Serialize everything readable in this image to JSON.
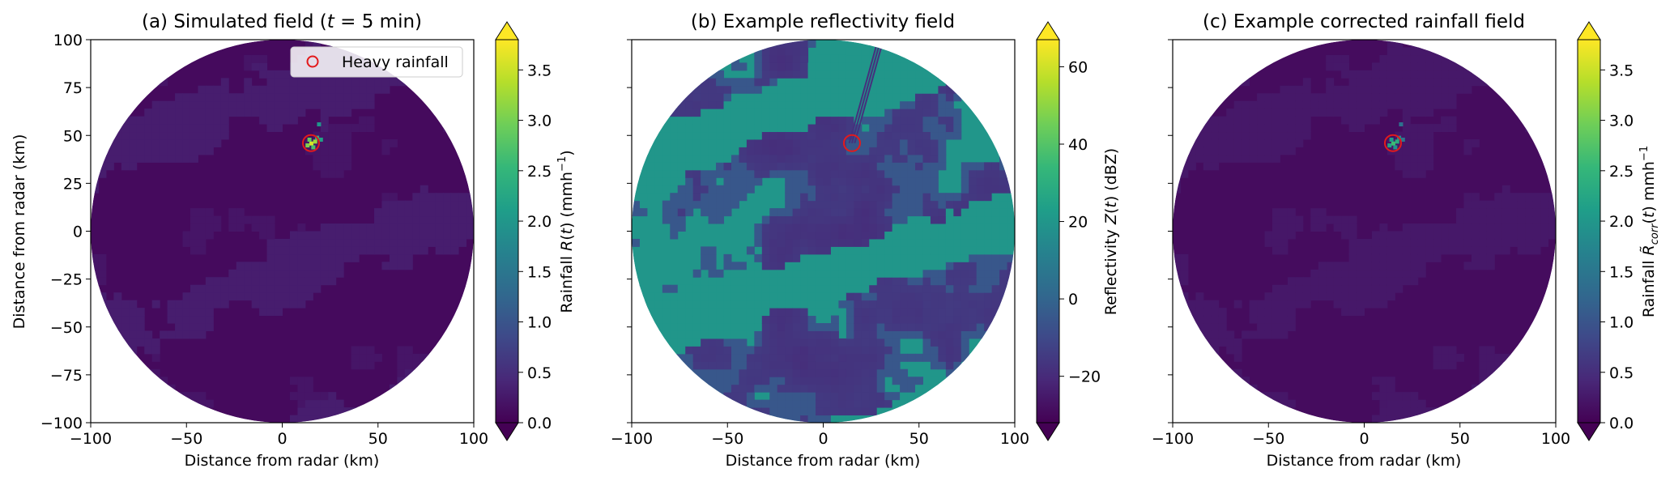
{
  "chart_data": [
    {
      "type": "heatmap",
      "title": "(a) Simulated field (t = 5 min)",
      "xlabel": "Distance from radar (km)",
      "ylabel": "Distance from radar (km)",
      "xlim": [
        -100,
        100
      ],
      "ylim": [
        -100,
        100
      ],
      "x_ticks": [
        "−100",
        "−50",
        "0",
        "50",
        "100"
      ],
      "y_ticks": [
        "100",
        "75",
        "50",
        "25",
        "0",
        "−25",
        "−50",
        "−75",
        "−100"
      ],
      "legend": {
        "label": "Heavy rainfall",
        "placement": "top-right"
      },
      "heavy_rainfall_marker": {
        "x": 15,
        "y": 46
      },
      "colorbar": {
        "label": "Rainfall R(t) (mmh⁻¹)",
        "range": [
          0.0,
          3.8
        ],
        "ticks": [
          "0.0",
          "0.5",
          "1.0",
          "1.5",
          "2.0",
          "2.5",
          "3.0",
          "3.5"
        ],
        "tick_values": [
          0.0,
          0.5,
          1.0,
          1.5,
          2.0,
          2.5,
          3.0,
          3.5
        ],
        "extend": "both",
        "colormap": "viridis"
      },
      "field": {
        "domain_radius_km": 100,
        "background_level": 0.1,
        "bands_level": 0.3,
        "hotspot": {
          "x": 15,
          "y": 46,
          "peak": 3.6
        }
      }
    },
    {
      "type": "heatmap",
      "title": "(b) Example reflectivity field",
      "xlabel": "Distance from radar (km)",
      "ylabel": "",
      "xlim": [
        -100,
        100
      ],
      "ylim": [
        -100,
        100
      ],
      "x_ticks": [
        "−100",
        "−50",
        "0",
        "50",
        "100"
      ],
      "y_ticks": [],
      "heavy_rainfall_marker": {
        "x": 15,
        "y": 46
      },
      "colorbar": {
        "label": "Reflectivity Z(t) (dBZ)",
        "range": [
          -32,
          67
        ],
        "ticks": [
          "−20",
          "0",
          "20",
          "40",
          "60"
        ],
        "tick_values": [
          -20,
          0,
          20,
          40,
          60
        ],
        "extend": "both",
        "colormap": "viridis"
      },
      "field": {
        "domain_radius_km": 100,
        "background_level": 20,
        "bands_level": 20,
        "noise_level": -20,
        "attenuation_streak": {
          "from": [
            15,
            46
          ],
          "to": [
            30,
            100
          ]
        }
      }
    },
    {
      "type": "heatmap",
      "title": "(c) Example corrected rainfall field",
      "xlabel": "Distance from radar (km)",
      "ylabel": "",
      "xlim": [
        -100,
        100
      ],
      "ylim": [
        -100,
        100
      ],
      "x_ticks": [
        "−100",
        "−50",
        "0",
        "50",
        "100"
      ],
      "y_ticks": [],
      "heavy_rainfall_marker": {
        "x": 15,
        "y": 46
      },
      "colorbar": {
        "label": "Rainfall R̃corr(t) mmh⁻¹",
        "range": [
          0.0,
          3.8
        ],
        "ticks": [
          "0.0",
          "0.5",
          "1.0",
          "1.5",
          "2.0",
          "2.5",
          "3.0",
          "3.5"
        ],
        "tick_values": [
          0.0,
          0.5,
          1.0,
          1.5,
          2.0,
          2.5,
          3.0,
          3.5
        ],
        "extend": "both",
        "colormap": "viridis"
      },
      "field": {
        "domain_radius_km": 100,
        "background_level": 0.12,
        "bands_level": 0.25,
        "hotspot": {
          "x": 15,
          "y": 46,
          "peak": 2.6
        }
      }
    }
  ],
  "colors": {
    "marker": "#e31a1c",
    "legend_border": "#cccccc",
    "viridis": [
      "#440154",
      "#482878",
      "#3e4989",
      "#31688e",
      "#26828e",
      "#1f9e89",
      "#35b779",
      "#6ece58",
      "#b5de2b",
      "#fde725"
    ]
  }
}
